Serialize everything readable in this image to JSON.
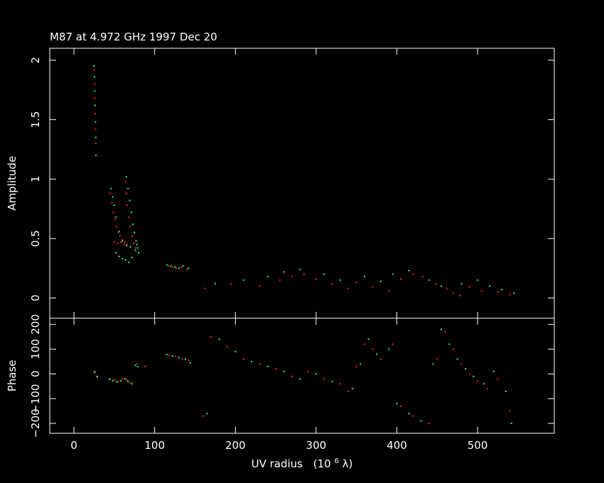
{
  "chart_data": {
    "type": "scatter",
    "title": "M87 at 4.972 GHz 1997 Dec 20",
    "xlabel": "UV radius",
    "xlabel_unit": "(10",
    "xlabel_unit_exp": "6",
    "xlabel_unit_end": " λ)",
    "xlim": [
      -30,
      595
    ],
    "x_ticks": [
      "0",
      "100",
      "200",
      "300",
      "400",
      "500"
    ],
    "colors": {
      "a": "#ff2020",
      "b": "#20ff80",
      "background": "#000000",
      "axes": "#ffffff"
    },
    "panels": [
      {
        "ylabel": "Amplitude",
        "ylim": [
          -0.17,
          2.1
        ],
        "y_ticks": [
          "0",
          "0.5",
          "1",
          "1.5",
          "2"
        ],
        "series": [
          {
            "color": "a",
            "points": [
              [
                25.2,
                1.92
              ],
              [
                25.5,
                1.8
              ],
              [
                25.9,
                1.68
              ],
              [
                26.3,
                1.55
              ],
              [
                26.7,
                1.42
              ],
              [
                27.1,
                1.3
              ],
              [
                45,
                0.88
              ],
              [
                47,
                0.8
              ],
              [
                49,
                0.72
              ],
              [
                51,
                0.66
              ],
              [
                53,
                0.6
              ],
              [
                55,
                0.55
              ],
              [
                57,
                0.52
              ],
              [
                60,
                0.49
              ],
              [
                63,
                0.47
              ],
              [
                66,
                0.45
              ],
              [
                50,
                0.47
              ],
              [
                54,
                0.46
              ],
              [
                58,
                0.47
              ],
              [
                62,
                0.45
              ],
              [
                64,
                0.98
              ],
              [
                65,
                0.88
              ],
              [
                66,
                0.78
              ],
              [
                68,
                0.68
              ],
              [
                70,
                0.6
              ],
              [
                72,
                0.52
              ],
              [
                74,
                0.46
              ],
              [
                76,
                0.42
              ],
              [
                117,
                0.27
              ],
              [
                122,
                0.26
              ],
              [
                127,
                0.25
              ],
              [
                133,
                0.26
              ],
              [
                140,
                0.24
              ],
              [
                162,
                0.08
              ],
              [
                195,
                0.12
              ],
              [
                230,
                0.1
              ],
              [
                255,
                0.15
              ],
              [
                270,
                0.18
              ],
              [
                285,
                0.2
              ],
              [
                300,
                0.16
              ],
              [
                320,
                0.12
              ],
              [
                340,
                0.08
              ],
              [
                350,
                0.13
              ],
              [
                370,
                0.09
              ],
              [
                390,
                0.06
              ],
              [
                405,
                0.16
              ],
              [
                420,
                0.2
              ],
              [
                432,
                0.18
              ],
              [
                448,
                0.12
              ],
              [
                462,
                0.08
              ],
              [
                470,
                0.04
              ],
              [
                478,
                0.02
              ],
              [
                490,
                0.09
              ],
              [
                505,
                0.06
              ],
              [
                525,
                0.05
              ],
              [
                540,
                0.03
              ]
            ]
          },
          {
            "color": "b",
            "points": [
              [
                25,
                1.95
              ],
              [
                25.4,
                1.86
              ],
              [
                25.8,
                1.74
              ],
              [
                26.2,
                1.62
              ],
              [
                26.6,
                1.48
              ],
              [
                27,
                1.35
              ],
              [
                27.3,
                1.2
              ],
              [
                46,
                0.92
              ],
              [
                48,
                0.85
              ],
              [
                50,
                0.78
              ],
              [
                52,
                0.68
              ],
              [
                56,
                0.56
              ],
              [
                60,
                0.48
              ],
              [
                65,
                0.44
              ],
              [
                70,
                0.43
              ],
              [
                52,
                0.38
              ],
              [
                56,
                0.35
              ],
              [
                60,
                0.33
              ],
              [
                64,
                0.32
              ],
              [
                68,
                0.3
              ],
              [
                72,
                0.34
              ],
              [
                76,
                0.4
              ],
              [
                78,
                0.45
              ],
              [
                80,
                0.38
              ],
              [
                65,
                1.02
              ],
              [
                67,
                0.92
              ],
              [
                69,
                0.82
              ],
              [
                71,
                0.72
              ],
              [
                73,
                0.62
              ],
              [
                75,
                0.55
              ],
              [
                77,
                0.48
              ],
              [
                79,
                0.42
              ],
              [
                115,
                0.28
              ],
              [
                120,
                0.27
              ],
              [
                125,
                0.26
              ],
              [
                130,
                0.25
              ],
              [
                135,
                0.27
              ],
              [
                142,
                0.25
              ],
              [
                175,
                0.12
              ],
              [
                210,
                0.15
              ],
              [
                240,
                0.18
              ],
              [
                260,
                0.22
              ],
              [
                280,
                0.24
              ],
              [
                310,
                0.2
              ],
              [
                330,
                0.15
              ],
              [
                360,
                0.18
              ],
              [
                380,
                0.14
              ],
              [
                395,
                0.2
              ],
              [
                415,
                0.23
              ],
              [
                440,
                0.15
              ],
              [
                455,
                0.1
              ],
              [
                480,
                0.12
              ],
              [
                500,
                0.15
              ],
              [
                515,
                0.1
              ],
              [
                530,
                0.07
              ],
              [
                545,
                0.04
              ]
            ]
          }
        ]
      },
      {
        "ylabel": "Phase",
        "ylim": [
          -240,
          225
        ],
        "y_ticks": [
          "200",
          "100",
          "0",
          "−100",
          "−200"
        ],
        "series": [
          {
            "color": "a",
            "points": [
              [
                25,
                5
              ],
              [
                28,
                -10
              ],
              [
                45,
                -20
              ],
              [
                50,
                -25
              ],
              [
                55,
                -30
              ],
              [
                60,
                -20
              ],
              [
                65,
                -25
              ],
              [
                70,
                -35
              ],
              [
                78,
                40
              ],
              [
                88,
                30
              ],
              [
                118,
                75
              ],
              [
                126,
                70
              ],
              [
                134,
                62
              ],
              [
                142,
                55
              ],
              [
                160,
                -170
              ],
              [
                170,
                150
              ],
              [
                190,
                110
              ],
              [
                210,
                60
              ],
              [
                230,
                40
              ],
              [
                250,
                20
              ],
              [
                270,
                -10
              ],
              [
                290,
                10
              ],
              [
                310,
                -20
              ],
              [
                330,
                -40
              ],
              [
                340,
                -70
              ],
              [
                350,
                30
              ],
              [
                360,
                120
              ],
              [
                370,
                100
              ],
              [
                380,
                60
              ],
              [
                395,
                120
              ],
              [
                405,
                -130
              ],
              [
                420,
                -170
              ],
              [
                440,
                -200
              ],
              [
                450,
                60
              ],
              [
                460,
                170
              ],
              [
                470,
                100
              ],
              [
                480,
                40
              ],
              [
                490,
                0
              ],
              [
                500,
                -30
              ],
              [
                512,
                -60
              ],
              [
                525,
                -20
              ],
              [
                540,
                -150
              ]
            ]
          },
          {
            "color": "b",
            "points": [
              [
                26,
                8
              ],
              [
                29,
                -12
              ],
              [
                44,
                -22
              ],
              [
                48,
                -28
              ],
              [
                53,
                -32
              ],
              [
                58,
                -28
              ],
              [
                63,
                -20
              ],
              [
                67,
                -30
              ],
              [
                72,
                -40
              ],
              [
                76,
                35
              ],
              [
                79,
                30
              ],
              [
                115,
                78
              ],
              [
                122,
                72
              ],
              [
                130,
                66
              ],
              [
                138,
                60
              ],
              [
                144,
                45
              ],
              [
                165,
                -160
              ],
              [
                180,
                140
              ],
              [
                200,
                90
              ],
              [
                220,
                50
              ],
              [
                240,
                30
              ],
              [
                260,
                10
              ],
              [
                280,
                -20
              ],
              [
                300,
                0
              ],
              [
                320,
                -30
              ],
              [
                345,
                -60
              ],
              [
                355,
                40
              ],
              [
                365,
                140
              ],
              [
                375,
                80
              ],
              [
                390,
                100
              ],
              [
                400,
                -120
              ],
              [
                415,
                -160
              ],
              [
                430,
                -190
              ],
              [
                445,
                40
              ],
              [
                455,
                180
              ],
              [
                465,
                120
              ],
              [
                475,
                60
              ],
              [
                485,
                20
              ],
              [
                495,
                -10
              ],
              [
                508,
                -40
              ],
              [
                520,
                10
              ],
              [
                535,
                -70
              ],
              [
                542,
                -200
              ]
            ]
          }
        ]
      }
    ]
  }
}
